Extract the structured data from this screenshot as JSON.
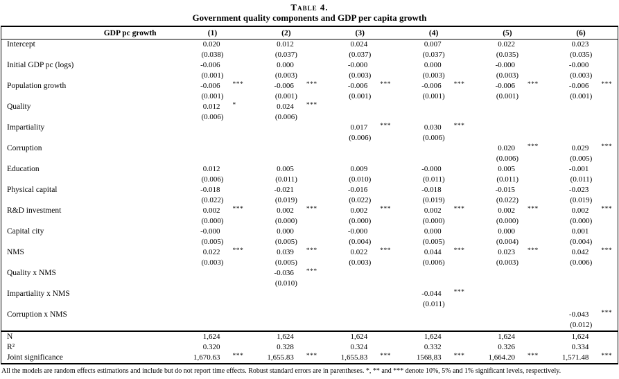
{
  "title": "Table 4.",
  "subtitle": "Government quality components and GDP per capita growth",
  "header": {
    "label": "GDP pc growth",
    "columns": [
      "(1)",
      "(2)",
      "(3)",
      "(4)",
      "(5)",
      "(6)"
    ]
  },
  "rows": [
    {
      "label": "Intercept",
      "cells": [
        {
          "coef": "0.020",
          "stars": "",
          "se": "(0.038)"
        },
        {
          "coef": "0.012",
          "stars": "",
          "se": "(0.037)"
        },
        {
          "coef": "0.024",
          "stars": "",
          "se": "(0.037)"
        },
        {
          "coef": "0.007",
          "stars": "",
          "se": "(0.037)"
        },
        {
          "coef": "0.022",
          "stars": "",
          "se": "(0.035)"
        },
        {
          "coef": "0.023",
          "stars": "",
          "se": "(0.035)"
        }
      ]
    },
    {
      "label": "Initial GDP pc (logs)",
      "cells": [
        {
          "coef": "-0.006",
          "stars": "",
          "se": "(0.001)"
        },
        {
          "coef": "0.000",
          "stars": "",
          "se": "(0.003)"
        },
        {
          "coef": "-0.000",
          "stars": "",
          "se": "(0.003)"
        },
        {
          "coef": "0.000",
          "stars": "",
          "se": "(0.003)"
        },
        {
          "coef": "-0.000",
          "stars": "",
          "se": "(0.003)"
        },
        {
          "coef": "-0.000",
          "stars": "",
          "se": "(0.003)"
        }
      ]
    },
    {
      "label": "Population growth",
      "cells": [
        {
          "coef": "-0.006",
          "stars": "***",
          "se": "(0.001)"
        },
        {
          "coef": "-0.006",
          "stars": "***",
          "se": "(0.001)"
        },
        {
          "coef": "-0.006",
          "stars": "***",
          "se": "(0.001)"
        },
        {
          "coef": "-0.006",
          "stars": "***",
          "se": "(0.001)"
        },
        {
          "coef": "-0.006",
          "stars": "***",
          "se": "(0.001)"
        },
        {
          "coef": "-0.006",
          "stars": "***",
          "se": "(0.001)"
        }
      ]
    },
    {
      "label": "Quality",
      "cells": [
        {
          "coef": "0.012",
          "stars": "*",
          "se": "(0.006)"
        },
        {
          "coef": "0.024",
          "stars": "***",
          "se": "(0.006)"
        },
        {
          "coef": "",
          "stars": "",
          "se": ""
        },
        {
          "coef": "",
          "stars": "",
          "se": ""
        },
        {
          "coef": "",
          "stars": "",
          "se": ""
        },
        {
          "coef": "",
          "stars": "",
          "se": ""
        }
      ]
    },
    {
      "label": "Impartiality",
      "cells": [
        {
          "coef": "",
          "stars": "",
          "se": ""
        },
        {
          "coef": "",
          "stars": "",
          "se": ""
        },
        {
          "coef": "0.017",
          "stars": "***",
          "se": "(0.006)"
        },
        {
          "coef": "0.030",
          "stars": "***",
          "se": "(0.006)"
        },
        {
          "coef": "",
          "stars": "",
          "se": ""
        },
        {
          "coef": "",
          "stars": "",
          "se": ""
        }
      ]
    },
    {
      "label": "Corruption",
      "cells": [
        {
          "coef": "",
          "stars": "",
          "se": ""
        },
        {
          "coef": "",
          "stars": "",
          "se": ""
        },
        {
          "coef": "",
          "stars": "",
          "se": ""
        },
        {
          "coef": "",
          "stars": "",
          "se": ""
        },
        {
          "coef": "0.020",
          "stars": "***",
          "se": "(0.006)"
        },
        {
          "coef": "0.029",
          "stars": "***",
          "se": "(0.005)"
        }
      ]
    },
    {
      "label": "Education",
      "cells": [
        {
          "coef": "0.012",
          "stars": "",
          "se": "(0.006)"
        },
        {
          "coef": "0.005",
          "stars": "",
          "se": "(0.011)"
        },
        {
          "coef": "0.009",
          "stars": "",
          "se": "(0.010)"
        },
        {
          "coef": "-0.000",
          "stars": "",
          "se": "(0.011)"
        },
        {
          "coef": "0.005",
          "stars": "",
          "se": "(0.011)"
        },
        {
          "coef": "-0.001",
          "stars": "",
          "se": "(0.011)"
        }
      ]
    },
    {
      "label": "Physical capital",
      "cells": [
        {
          "coef": "-0.018",
          "stars": "",
          "se": "(0.022)"
        },
        {
          "coef": "-0.021",
          "stars": "",
          "se": "(0.019)"
        },
        {
          "coef": "-0.016",
          "stars": "",
          "se": "(0.022)"
        },
        {
          "coef": "-0.018",
          "stars": "",
          "se": "(0.019)"
        },
        {
          "coef": "-0.015",
          "stars": "",
          "se": "(0.022)"
        },
        {
          "coef": "-0.023",
          "stars": "",
          "se": "(0.019)"
        }
      ]
    },
    {
      "label": "R&D investment",
      "cells": [
        {
          "coef": "0.002",
          "stars": "***",
          "se": "(0.000)"
        },
        {
          "coef": "0.002",
          "stars": "***",
          "se": "(0.000)"
        },
        {
          "coef": "0.002",
          "stars": "***",
          "se": "(0.000)"
        },
        {
          "coef": "0.002",
          "stars": "***",
          "se": "(0.000)"
        },
        {
          "coef": "0.002",
          "stars": "***",
          "se": "(0.000)"
        },
        {
          "coef": "0.002",
          "stars": "***",
          "se": "(0.000)"
        }
      ]
    },
    {
      "label": "Capital city",
      "cells": [
        {
          "coef": "-0.000",
          "stars": "",
          "se": "(0.005)"
        },
        {
          "coef": "0.000",
          "stars": "",
          "se": "(0.005)"
        },
        {
          "coef": "-0.000",
          "stars": "",
          "se": "(0.004)"
        },
        {
          "coef": "0.000",
          "stars": "",
          "se": "(0.005)"
        },
        {
          "coef": "0.000",
          "stars": "",
          "se": "(0.004)"
        },
        {
          "coef": "0.001",
          "stars": "",
          "se": "(0.004)"
        }
      ]
    },
    {
      "label": "NMS",
      "cells": [
        {
          "coef": "0.022",
          "stars": "***",
          "se": "(0.003)"
        },
        {
          "coef": "0.039",
          "stars": "***",
          "se": "(0.005)"
        },
        {
          "coef": "0.022",
          "stars": "***",
          "se": "(0.003)"
        },
        {
          "coef": "0.044",
          "stars": "***",
          "se": "(0.006)"
        },
        {
          "coef": "0.023",
          "stars": "***",
          "se": "(0.003)"
        },
        {
          "coef": "0.042",
          "stars": "***",
          "se": "(0.006)"
        }
      ]
    },
    {
      "label": "Quality x NMS",
      "cells": [
        {
          "coef": "",
          "stars": "",
          "se": ""
        },
        {
          "coef": "-0.036",
          "stars": "***",
          "se": "(0.010)"
        },
        {
          "coef": "",
          "stars": "",
          "se": ""
        },
        {
          "coef": "",
          "stars": "",
          "se": ""
        },
        {
          "coef": "",
          "stars": "",
          "se": ""
        },
        {
          "coef": "",
          "stars": "",
          "se": ""
        }
      ]
    },
    {
      "label": "Impartiality x NMS",
      "cells": [
        {
          "coef": "",
          "stars": "",
          "se": ""
        },
        {
          "coef": "",
          "stars": "",
          "se": ""
        },
        {
          "coef": "",
          "stars": "",
          "se": ""
        },
        {
          "coef": "-0.044",
          "stars": "***",
          "se": "(0.011)"
        },
        {
          "coef": "",
          "stars": "",
          "se": ""
        },
        {
          "coef": "",
          "stars": "",
          "se": ""
        }
      ]
    },
    {
      "label": "Corruption x NMS",
      "cells": [
        {
          "coef": "",
          "stars": "",
          "se": ""
        },
        {
          "coef": "",
          "stars": "",
          "se": ""
        },
        {
          "coef": "",
          "stars": "",
          "se": ""
        },
        {
          "coef": "",
          "stars": "",
          "se": ""
        },
        {
          "coef": "",
          "stars": "",
          "se": ""
        },
        {
          "coef": "-0.043",
          "stars": "***",
          "se": "(0.012)"
        }
      ]
    }
  ],
  "stats": [
    {
      "label": "N",
      "cells": [
        {
          "v": "1,624",
          "stars": ""
        },
        {
          "v": "1,624",
          "stars": ""
        },
        {
          "v": "1,624",
          "stars": ""
        },
        {
          "v": "1,624",
          "stars": ""
        },
        {
          "v": "1,624",
          "stars": ""
        },
        {
          "v": "1,624",
          "stars": ""
        }
      ]
    },
    {
      "label": "R²",
      "cells": [
        {
          "v": "0.320",
          "stars": ""
        },
        {
          "v": "0.328",
          "stars": ""
        },
        {
          "v": "0.324",
          "stars": ""
        },
        {
          "v": "0.332",
          "stars": ""
        },
        {
          "v": "0.326",
          "stars": ""
        },
        {
          "v": "0.334",
          "stars": ""
        }
      ]
    },
    {
      "label": "Joint significance",
      "cells": [
        {
          "v": "1,670.63",
          "stars": "***"
        },
        {
          "v": "1,655.83",
          "stars": "***"
        },
        {
          "v": "1,655.83",
          "stars": "***"
        },
        {
          "v": "1568,83",
          "stars": "***"
        },
        {
          "v": "1,664.20",
          "stars": "***"
        },
        {
          "v": "1,571.48",
          "stars": "***"
        }
      ]
    }
  ],
  "footnote": "All the models are random effects estimations and include but do not report time effects. Robust standard errors are in parentheses. *, ** and *** denote 10%, 5% and 1% significant levels, respectively."
}
